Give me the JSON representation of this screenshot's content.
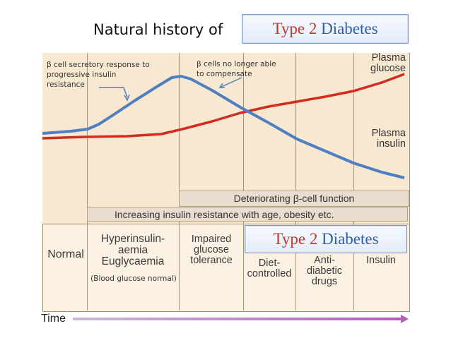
{
  "title": "Natural history of",
  "type_box": {
    "num": "Type 2",
    "word": "Diabetes"
  },
  "curve_labels": {
    "glucose": [
      "Plasma",
      "glucose"
    ],
    "insulin": [
      "Plasma",
      "insulin"
    ]
  },
  "annotations": {
    "left": [
      "β cell secretory response to",
      "progressive insulin",
      "resistance"
    ],
    "right": [
      "β cells no longer able",
      "to compensate"
    ]
  },
  "bars": {
    "beta_cell": "Deteriorating β-cell function",
    "insulin_resistance": "Increasing insulin resistance with age, obesity etc."
  },
  "stages": {
    "normal": "Normal",
    "hyper": [
      "Hyperinsulin-",
      "aemia",
      "Euglycaemia"
    ],
    "hyper_note": "(Blood glucose normal)",
    "impaired": [
      "Impaired",
      "glucose",
      "tolerance"
    ],
    "diet": [
      "Diet-",
      "controlled"
    ],
    "drugs": [
      "Anti-",
      "diabetic",
      "drugs"
    ],
    "insulin": "Insulin"
  },
  "axis": {
    "time": "Time"
  },
  "colors": {
    "glucose": "#d52b1e",
    "insulin": "#4f7fc0",
    "panel_border": "#a58f6a"
  }
}
